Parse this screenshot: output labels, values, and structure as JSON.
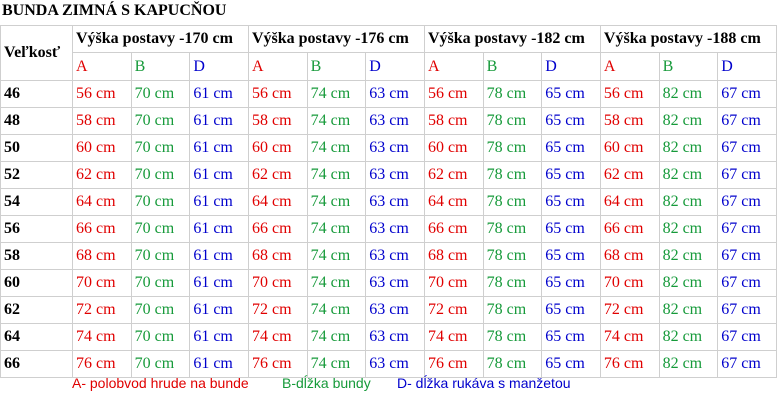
{
  "title": "BUNDA ZIMNÁ S KAPUCŇOU",
  "size_header": "Veľkosť",
  "groups": [
    {
      "label": "Výška postavy -170 cm",
      "columns": [
        "A",
        "B",
        "D"
      ]
    },
    {
      "label": "Výška postavy -176 cm",
      "columns": [
        "A",
        "B",
        "D"
      ]
    },
    {
      "label": "Výška postavy -182 cm",
      "columns": [
        "A",
        "B",
        "D"
      ]
    },
    {
      "label": "Výška postavy -188 cm",
      "columns": [
        "A",
        "B",
        "D"
      ]
    }
  ],
  "rows": [
    {
      "size": "46",
      "cells": [
        [
          "56 cm",
          "70 cm",
          "61 cm"
        ],
        [
          "56 cm",
          "74 cm",
          "63 cm"
        ],
        [
          "56 cm",
          "78 cm",
          "65 cm"
        ],
        [
          "56 cm",
          "82 cm",
          "67 cm"
        ]
      ]
    },
    {
      "size": "48",
      "cells": [
        [
          "58 cm",
          "70 cm",
          "61 cm"
        ],
        [
          "58 cm",
          "74 cm",
          "63 cm"
        ],
        [
          "58 cm",
          "78 cm",
          "65 cm"
        ],
        [
          "58 cm",
          "82 cm",
          "67 cm"
        ]
      ]
    },
    {
      "size": "50",
      "cells": [
        [
          "60 cm",
          "70 cm",
          "61 cm"
        ],
        [
          "60 cm",
          "74 cm",
          "63 cm"
        ],
        [
          "60 cm",
          "78 cm",
          "65 cm"
        ],
        [
          "60 cm",
          "82 cm",
          "67 cm"
        ]
      ]
    },
    {
      "size": "52",
      "cells": [
        [
          "62 cm",
          "70 cm",
          "61 cm"
        ],
        [
          "62 cm",
          "74 cm",
          "63 cm"
        ],
        [
          "62 cm",
          "78 cm",
          "65 cm"
        ],
        [
          "62 cm",
          "82 cm",
          "67 cm"
        ]
      ]
    },
    {
      "size": "54",
      "cells": [
        [
          "64 cm",
          "70 cm",
          "61 cm"
        ],
        [
          "64 cm",
          "74 cm",
          "63 cm"
        ],
        [
          "64 cm",
          "78 cm",
          "65 cm"
        ],
        [
          "64 cm",
          "82 cm",
          "67 cm"
        ]
      ]
    },
    {
      "size": "56",
      "cells": [
        [
          "66 cm",
          "70 cm",
          "61 cm"
        ],
        [
          "66 cm",
          "74 cm",
          "63 cm"
        ],
        [
          "66 cm",
          "78 cm",
          "65 cm"
        ],
        [
          "66 cm",
          "82 cm",
          "67 cm"
        ]
      ]
    },
    {
      "size": "58",
      "cells": [
        [
          "68 cm",
          "70 cm",
          "61 cm"
        ],
        [
          "68 cm",
          "74 cm",
          "63 cm"
        ],
        [
          "68 cm",
          "78 cm",
          "65 cm"
        ],
        [
          "68 cm",
          "82 cm",
          "67 cm"
        ]
      ]
    },
    {
      "size": "60",
      "cells": [
        [
          "70 cm",
          "70 cm",
          "61 cm"
        ],
        [
          "70 cm",
          "74 cm",
          "63 cm"
        ],
        [
          "70 cm",
          "78 cm",
          "65 cm"
        ],
        [
          "70 cm",
          "82 cm",
          "67 cm"
        ]
      ]
    },
    {
      "size": "62",
      "cells": [
        [
          "72 cm",
          "70 cm",
          "61 cm"
        ],
        [
          "72 cm",
          "74 cm",
          "63 cm"
        ],
        [
          "72 cm",
          "78 cm",
          "65 cm"
        ],
        [
          "72 cm",
          "82 cm",
          "67 cm"
        ]
      ]
    },
    {
      "size": "64",
      "cells": [
        [
          "74 cm",
          "70 cm",
          "61 cm"
        ],
        [
          "74 cm",
          "74 cm",
          "63 cm"
        ],
        [
          "74 cm",
          "78 cm",
          "65 cm"
        ],
        [
          "74 cm",
          "82 cm",
          "67 cm"
        ]
      ]
    },
    {
      "size": "66",
      "cells": [
        [
          "76 cm",
          "70 cm",
          "61 cm"
        ],
        [
          "76 cm",
          "74 cm",
          "63 cm"
        ],
        [
          "76 cm",
          "78 cm",
          "65 cm"
        ],
        [
          "76 cm",
          "82 cm",
          "67 cm"
        ]
      ]
    }
  ],
  "legend": [
    "A- polobvod hrude na bunde",
    "B-dĺžka bundy",
    "D- dĺžka rukáva s manžetou"
  ]
}
